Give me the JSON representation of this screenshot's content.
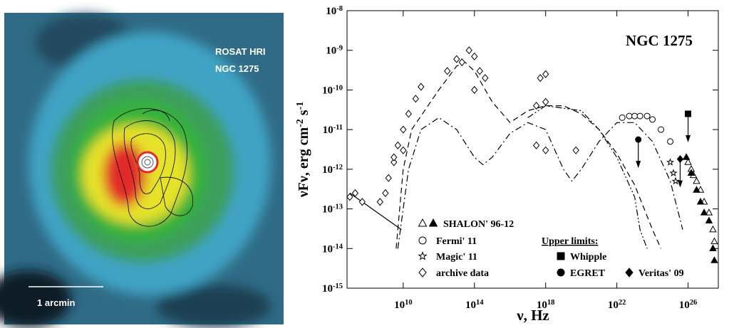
{
  "image": {
    "labels": [
      "ROSAT HRI",
      "NGC 1275",
      "1 arcmin"
    ]
  },
  "chart_data": {
    "type": "scatter",
    "title": "NGC 1275",
    "xlabel": "ν, Hz",
    "ylabel": "νFν, erg cm^-2 s^-1",
    "log_x": true,
    "log_y": true,
    "xlim": [
      7000000.0,
      5e+27
    ],
    "ylim": [
      1e-15,
      1e-08
    ],
    "xticks": [
      {
        "value": 10000000000.0,
        "label": "10^10"
      },
      {
        "value": 100000000000000.0,
        "label": "10^14"
      },
      {
        "value": 1e+18,
        "label": "10^18"
      },
      {
        "value": 1e+22,
        "label": "10^22"
      },
      {
        "value": 1e+26,
        "label": "10^26"
      }
    ],
    "yticks": [
      {
        "value": 1e-15,
        "label": "10^-15"
      },
      {
        "value": 1e-14,
        "label": "10^-14"
      },
      {
        "value": 1e-13,
        "label": "10^-13"
      },
      {
        "value": 1e-12,
        "label": "10^-12"
      },
      {
        "value": 1e-11,
        "label": "10^-11"
      },
      {
        "value": 1e-10,
        "label": "10^-10"
      },
      {
        "value": 1e-09,
        "label": "10^-9"
      },
      {
        "value": 1e-08,
        "label": "10^-8"
      }
    ],
    "legend_heading": "Upper limits:",
    "series": [
      {
        "name": "SHALON' 96-12",
        "marker": "triangle-open",
        "color": "#000",
        "x": [
          1e+26,
          1.5e+26,
          2e+26,
          3e+26,
          5e+26,
          8e+26,
          1.5e+27,
          2.5e+27,
          3e+27
        ],
        "values": [
          1.5e-12,
          1e-12,
          7e-13,
          5e-13,
          3e-13,
          1.5e-13,
          8e-14,
          3e-14,
          1.5e-14
        ]
      },
      {
        "marker": "triangle",
        "color": "#000",
        "x": [
          8e+25,
          1.5e+26,
          3e+26,
          5e+26,
          8e+26,
          1.5e+27,
          2.5e+27,
          3e+27
        ],
        "values": [
          2e-12,
          8e-13,
          3e-13,
          1.5e-13,
          8e-14,
          5e-14,
          1e-14,
          5e-15
        ]
      },
      {
        "name": "Fermi' 11",
        "marker": "circle-open",
        "color": "#000",
        "x": [
          2e+22,
          5e+22,
          1e+23,
          2e+23,
          5e+23,
          1e+24,
          3e+24,
          1e+25
        ],
        "values": [
          2e-11,
          2.2e-11,
          2.2e-11,
          2.2e-11,
          2.2e-11,
          1.8e-11,
          1e-11,
          5e-12
        ]
      },
      {
        "name": "Magic' 11",
        "marker": "star-open",
        "color": "#000",
        "x": [
          1e+25,
          1.5e+25,
          2e+25
        ],
        "values": [
          1.5e-12,
          8e-13,
          5e-13
        ]
      },
      {
        "name": "archive data",
        "marker": "diamond-open",
        "color": "#000",
        "x": [
          10000000.0,
          20000000.0,
          50000000.0,
          500000000.0,
          1000000000.0,
          1500000000.0,
          3000000000.0,
          5000000000.0,
          10000000000.0,
          20000000000.0,
          50000000000.0,
          100000000000.0,
          3000000000000.0,
          10000000000000.0,
          20000000000000.0,
          50000000000000.0,
          100000000000000.0,
          200000000000000.0,
          400000000000000.0,
          100000000000000.0,
          5e+17,
          1e+18,
          3e+17,
          1e+18,
          3e+17,
          1e+18,
          5e+19,
          10000000000.0,
          3000000000.0
        ],
        "values": [
          2e-13,
          2.5e-13,
          1.5e-13,
          1.5e-13,
          2.5e-13,
          6e-13,
          1.5e-12,
          4e-12,
          1e-11,
          2.5e-11,
          6e-11,
          1.2e-10,
          3e-10,
          6e-10,
          5e-10,
          1e-09,
          7e-10,
          3e-10,
          2e-10,
          1e-10,
          2e-10,
          2.5e-10,
          4e-11,
          5e-11,
          4e-12,
          3e-12,
          3e-12,
          3e-12,
          2e-12
        ]
      },
      {
        "name": "Whipple",
        "marker": "square",
        "color": "#000",
        "upper_limit": true,
        "x": [
          1e+26
        ],
        "values": [
          2.5e-11
        ]
      },
      {
        "name": "EGRET",
        "marker": "circle",
        "color": "#000",
        "upper_limit": true,
        "x": [
          1.6e+23
        ],
        "values": [
          5.6e-12
        ]
      },
      {
        "name": "Veritas' 09",
        "marker": "diamond",
        "color": "#000",
        "upper_limit": true,
        "x": [
          3.6e+25
        ],
        "values": [
          1.8e-12
        ]
      }
    ],
    "curves": [
      {
        "style": "dashed",
        "color": "#000",
        "x": [
          4000000000.0,
          10000000000.0,
          30000000000.0,
          1000000000000.0,
          10000000000000.0,
          30000000000000.0,
          100000000000000.0,
          1000000000000000.0,
          1e+16,
          1e+17,
          1e+18,
          1e+19,
          1e+20,
          1e+21,
          1e+22,
          1e+23,
          1e+24,
          3e+24
        ],
        "values": [
          1e-14,
          1e-12,
          1e-11,
          1e-10,
          4e-10,
          5e-10,
          3e-10,
          5e-11,
          1.5e-11,
          3e-11,
          4e-11,
          4e-11,
          2.5e-11,
          1e-11,
          2.5e-12,
          4e-13,
          3e-14,
          1e-14
        ]
      },
      {
        "style": "dash-dot",
        "color": "#000",
        "x": [
          5000000000.0,
          20000000000.0,
          100000000000.0,
          1000000000000.0,
          10000000000000.0,
          100000000000000.0,
          300000000000000.0,
          1000000000000000.0,
          1e+16,
          1e+17,
          1e+18,
          1e+19,
          3e+19,
          1e+20,
          1e+21,
          1e+22,
          1e+23,
          1e+24,
          1e+25,
          5e+25
        ],
        "values": [
          1e-14,
          1e-12,
          1e-11,
          2e-11,
          1e-11,
          2e-12,
          1.3e-12,
          2e-12,
          8e-12,
          1.5e-11,
          1e-11,
          1e-12,
          5e-13,
          1e-12,
          5e-12,
          1.5e-11,
          1.5e-11,
          5e-12,
          5e-13,
          3e-14
        ]
      },
      {
        "style": "dash-dot-dot",
        "color": "#000",
        "x": [
          1e+17,
          1e+18,
          1e+20,
          1e+21,
          1e+22,
          1e+23,
          2e+23,
          5e+23
        ],
        "values": [
          2e-11,
          4e-11,
          3e-11,
          1e-11,
          2e-12,
          2e-13,
          3e-14,
          1e-14
        ]
      },
      {
        "style": "solid",
        "color": "#000",
        "x": [
          10000000.0,
          8000000000.0
        ],
        "values": [
          2.5e-13,
          3e-14
        ]
      }
    ]
  }
}
